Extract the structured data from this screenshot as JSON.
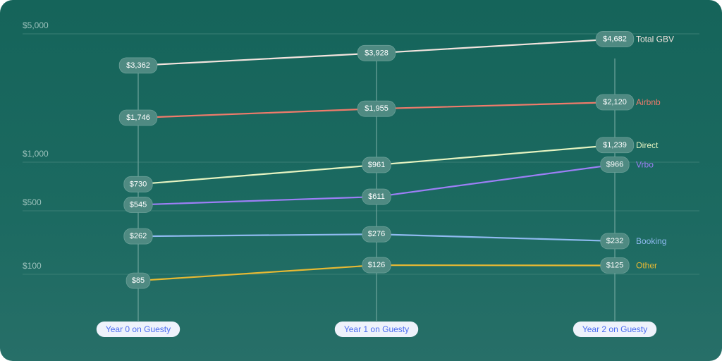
{
  "chart_data": {
    "type": "line",
    "title": "",
    "xlabel": "",
    "ylabel": "",
    "yscale": "log",
    "ylim": [
      60,
      5000
    ],
    "grid": true,
    "legend": "right-end labels",
    "y_ticks": [
      {
        "value": 5000,
        "label": "$5,000"
      },
      {
        "value": 1000,
        "label": "$1,000"
      },
      {
        "value": 500,
        "label": "$500"
      },
      {
        "value": 100,
        "label": "$100"
      }
    ],
    "categories": [
      "Year 0 on Guesty",
      "Year 1 on Guesty",
      "Year 2 on Guesty"
    ],
    "series": [
      {
        "name": "Total GBV",
        "color": "#f3e4de",
        "values": [
          3362,
          3928,
          4682
        ],
        "labels": [
          "$3,362",
          "$3,928",
          "$4,682"
        ]
      },
      {
        "name": "Airbnb",
        "color": "#ef7b6b",
        "values": [
          1746,
          1955,
          2120
        ],
        "labels": [
          "$1,746",
          "$1,955",
          "$2,120"
        ]
      },
      {
        "name": "Direct",
        "color": "#e6f4c2",
        "values": [
          730,
          961,
          1239
        ],
        "labels": [
          "$730",
          "$961",
          "$1,239"
        ]
      },
      {
        "name": "Vrbo",
        "color": "#9d7ff6",
        "values": [
          545,
          611,
          966
        ],
        "labels": [
          "$545",
          "$611",
          "$966"
        ]
      },
      {
        "name": "Booking",
        "color": "#8fbaf0",
        "values": [
          262,
          276,
          232
        ],
        "labels": [
          "$262",
          "$276",
          "$232"
        ]
      },
      {
        "name": "Other",
        "color": "#e7b933",
        "values": [
          85,
          126,
          125
        ],
        "labels": [
          "$85",
          "$126",
          "$125"
        ]
      }
    ]
  }
}
